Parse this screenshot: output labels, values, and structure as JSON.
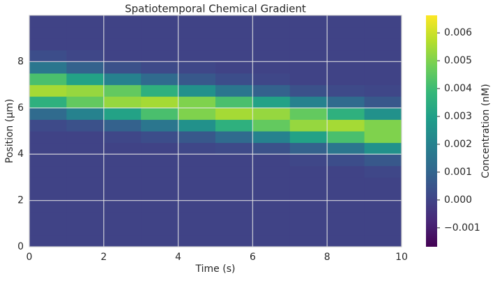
{
  "chart_data": {
    "type": "heatmap",
    "title": "Spatiotemporal Chemical Gradient",
    "x_label": "Time (s)",
    "y_label": "Position (μm)",
    "colorbar_label": "Concentration (nM)",
    "x": [
      0.5,
      1.5,
      2.5,
      3.5,
      4.5,
      5.5,
      6.5,
      7.5,
      8.5,
      9.5
    ],
    "y": [
      0.25,
      0.75,
      1.25,
      1.75,
      2.25,
      2.75,
      3.25,
      3.75,
      4.25,
      4.75,
      5.25,
      5.75,
      6.25,
      6.75,
      7.25,
      7.75,
      8.25,
      8.75,
      9.25,
      9.75
    ],
    "z": [
      [
        0,
        0,
        0,
        0,
        0,
        0,
        0,
        0,
        0,
        0,
        0.0002,
        0.0012,
        0.0036,
        0.0055,
        0.0042,
        0.0016,
        0.0003,
        0,
        0,
        0
      ],
      [
        0,
        0,
        0,
        0,
        0,
        0,
        0,
        0,
        0,
        0,
        0.0004,
        0.002,
        0.0046,
        0.0053,
        0.0031,
        0.0009,
        0.0001,
        0,
        0,
        0
      ],
      [
        0,
        0,
        0,
        0,
        0,
        0,
        0,
        0,
        0,
        0.0001,
        0.0009,
        0.0031,
        0.0053,
        0.0046,
        0.002,
        0.0004,
        0,
        0,
        0,
        0
      ],
      [
        0,
        0,
        0,
        0,
        0,
        0,
        0,
        0,
        0,
        0.0003,
        0.0016,
        0.0042,
        0.0055,
        0.0036,
        0.0012,
        0.0002,
        0,
        0,
        0,
        0
      ],
      [
        0,
        0,
        0,
        0,
        0,
        0,
        0,
        0,
        0.0001,
        0.0006,
        0.0025,
        0.005,
        0.005,
        0.0025,
        0.0006,
        0.0001,
        0,
        0,
        0,
        0
      ],
      [
        0,
        0,
        0,
        0,
        0,
        0,
        0,
        0,
        0.0002,
        0.0012,
        0.0036,
        0.0055,
        0.0042,
        0.0016,
        0.0003,
        0,
        0,
        0,
        0,
        0
      ],
      [
        0,
        0,
        0,
        0,
        0,
        0,
        0,
        0,
        0.0004,
        0.002,
        0.0046,
        0.0053,
        0.0031,
        0.0009,
        0.0001,
        0,
        0,
        0,
        0,
        0
      ],
      [
        0,
        0,
        0,
        0,
        0,
        0,
        0,
        0.0001,
        0.0009,
        0.0031,
        0.0053,
        0.0046,
        0.002,
        0.0004,
        0,
        0,
        0,
        0,
        0,
        0
      ],
      [
        0,
        0,
        0,
        0,
        0,
        0,
        0,
        0.0003,
        0.0016,
        0.0042,
        0.0055,
        0.0036,
        0.0012,
        0.0002,
        0,
        0,
        0,
        0,
        0,
        0
      ],
      [
        0,
        0,
        0,
        0,
        0,
        0,
        0.0001,
        0.0006,
        0.0025,
        0.005,
        0.005,
        0.0025,
        0.0006,
        0.0001,
        0,
        0,
        0,
        0,
        0,
        0
      ]
    ],
    "xlim": [
      0,
      10
    ],
    "ylim": [
      0,
      10
    ],
    "xticks": [
      0,
      2,
      4,
      6,
      8,
      10
    ],
    "yticks": [
      0,
      2,
      4,
      6,
      8
    ],
    "grid": true,
    "clim": [
      -0.00168,
      0.00663
    ],
    "cticks": [
      {
        "value": -0.001,
        "label": "−0.001"
      },
      {
        "value": 0,
        "label": "0.000"
      },
      {
        "value": 0.001,
        "label": "0.001"
      },
      {
        "value": 0.002,
        "label": "0.002"
      },
      {
        "value": 0.003,
        "label": "0.003"
      },
      {
        "value": 0.004,
        "label": "0.004"
      },
      {
        "value": 0.005,
        "label": "0.005"
      },
      {
        "value": 0.006,
        "label": "0.006"
      }
    ],
    "colormap": [
      "#440154",
      "#482878",
      "#3e4989",
      "#31688e",
      "#26828e",
      "#1f9e89",
      "#35b779",
      "#6ece58",
      "#b5de2b",
      "#fde725"
    ]
  }
}
